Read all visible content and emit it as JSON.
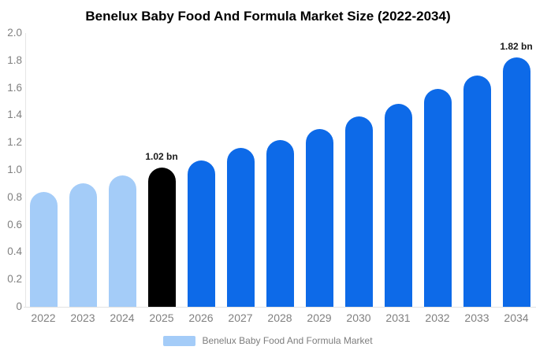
{
  "title": "Benelux Baby Food And Formula Market Size (2022-2034)",
  "colors": {
    "historical_bar": "#a4ccf8",
    "base_year_bar": "#000000",
    "forecast_bar": "#0d6ae8",
    "axis_text": "#808080",
    "annotation_text": "#1a1a1a",
    "axis_line": "#e6e6e6"
  },
  "legend": {
    "label": "Benelux Baby Food And Formula Market",
    "swatch_color": "#a4ccf8"
  },
  "chart_data": {
    "type": "bar",
    "title": "Benelux Baby Food And Formula Market Size (2022-2034)",
    "xlabel": "",
    "ylabel": "",
    "unit": "bn",
    "categories": [
      "2022",
      "2023",
      "2024",
      "2025",
      "2026",
      "2027",
      "2028",
      "2029",
      "2030",
      "2031",
      "2032",
      "2033",
      "2034"
    ],
    "values": [
      0.84,
      0.9,
      0.96,
      1.02,
      1.07,
      1.16,
      1.22,
      1.3,
      1.39,
      1.48,
      1.59,
      1.69,
      1.82
    ],
    "bar_colors": [
      "#a4ccf8",
      "#a4ccf8",
      "#a4ccf8",
      "#000000",
      "#0d6ae8",
      "#0d6ae8",
      "#0d6ae8",
      "#0d6ae8",
      "#0d6ae8",
      "#0d6ae8",
      "#0d6ae8",
      "#0d6ae8",
      "#0d6ae8"
    ],
    "ylim": [
      0,
      2.0
    ],
    "ytick_labels": [
      "0",
      "0.2",
      "0.4",
      "0.6",
      "0.8",
      "1.0",
      "1.2",
      "1.4",
      "1.6",
      "1.8",
      "2.0"
    ],
    "ytick_values": [
      0,
      0.2,
      0.4,
      0.6,
      0.8,
      1.0,
      1.2,
      1.4,
      1.6,
      1.8,
      2.0
    ],
    "grid": false,
    "legend_position": "bottom",
    "annotations": [
      {
        "index": 3,
        "text": "1.02 bn"
      },
      {
        "index": 12,
        "text": "1.82 bn"
      }
    ]
  }
}
